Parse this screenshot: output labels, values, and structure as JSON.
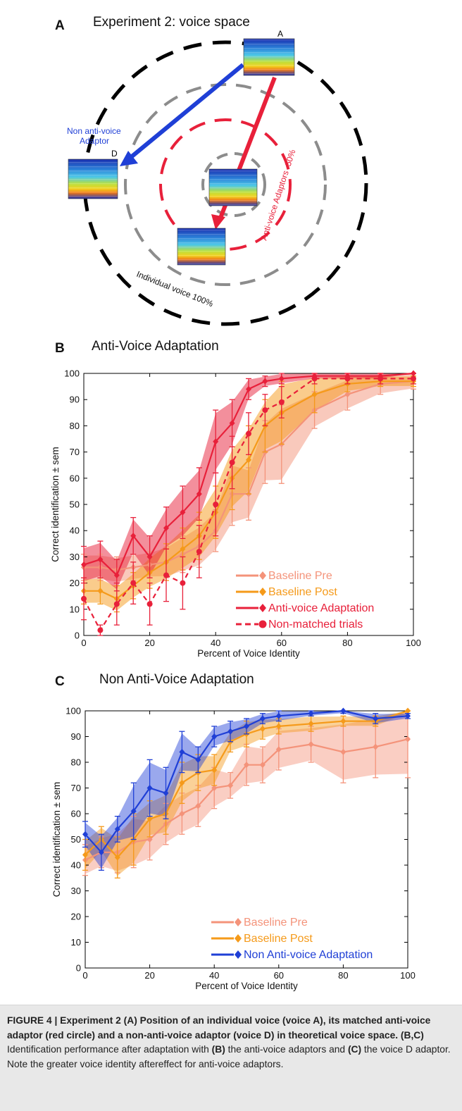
{
  "panel_a": {
    "letter": "A",
    "title": "Experiment 2: voice space",
    "label_a": "A",
    "label_d": "D",
    "label_non_anti_1": "Non anti-voice",
    "label_non_anti_2": "Adaptor",
    "label_anti": "Anti-voice Adaptors -50%",
    "label_individual": "Individual voice 100%",
    "colors": {
      "blue": "#1f3fd6",
      "red": "#e8203a",
      "gray": "#8c8c8c",
      "black": "#000000"
    }
  },
  "panel_b": {
    "letter": "B",
    "title": "Anti-Voice Adaptation",
    "legend": [
      "Baseline Pre",
      "Baseline Post",
      "Anti-voice Adaptation",
      "Non-matched trials"
    ]
  },
  "panel_c": {
    "letter": "C",
    "title": "Non Anti-Voice Adaptation",
    "legend": [
      "Baseline Pre",
      "Baseline Post",
      "Non Anti-voice Adaptation"
    ]
  },
  "chart_data": [
    {
      "type": "line",
      "title": "Anti-Voice Adaptation",
      "xlabel": "Percent of Voice Identity",
      "ylabel": "Correct identification ± sem",
      "xlim": [
        0,
        100
      ],
      "ylim": [
        0,
        100
      ],
      "xticks": [
        0,
        20,
        40,
        60,
        80,
        100
      ],
      "yticks": [
        0,
        10,
        20,
        30,
        40,
        50,
        60,
        70,
        80,
        90,
        100
      ],
      "series": [
        {
          "name": "Baseline Pre",
          "color": "#f4937a",
          "x": [
            0,
            5,
            10,
            15,
            20,
            25,
            30,
            35,
            40,
            45,
            50,
            55,
            60,
            70,
            80,
            90,
            100
          ],
          "y": [
            26,
            26,
            25,
            26,
            27,
            28,
            31,
            34,
            40,
            54,
            54,
            70,
            73,
            86,
            92,
            96,
            97
          ],
          "err": [
            5,
            5,
            5,
            5,
            5,
            6,
            7,
            8,
            8,
            12,
            10,
            12,
            15,
            7,
            6,
            4,
            3
          ]
        },
        {
          "name": "Baseline Post",
          "color": "#f59a1a",
          "x": [
            0,
            5,
            10,
            15,
            20,
            25,
            30,
            35,
            40,
            45,
            50,
            55,
            60,
            70,
            80,
            90,
            100
          ],
          "y": [
            17,
            17,
            14,
            19,
            24,
            28,
            33,
            38,
            47,
            60,
            67,
            80,
            85,
            92,
            96,
            97,
            97
          ],
          "err": [
            5,
            5,
            5,
            5,
            6,
            7,
            8,
            9,
            10,
            12,
            13,
            10,
            12,
            7,
            3,
            2,
            2
          ]
        },
        {
          "name": "Anti-voice Adaptation",
          "color": "#e8203a",
          "x": [
            0,
            5,
            10,
            15,
            20,
            25,
            30,
            35,
            40,
            45,
            50,
            55,
            60,
            70,
            80,
            90,
            100
          ],
          "y": [
            27,
            29,
            23,
            38,
            30,
            41,
            47,
            54,
            74,
            81,
            94,
            97,
            98,
            99,
            99,
            99,
            100
          ],
          "err": [
            7,
            7,
            6,
            7,
            8,
            8,
            10,
            10,
            12,
            9,
            4,
            2,
            2,
            1,
            1,
            1,
            0
          ]
        },
        {
          "name": "Non-matched trials",
          "color": "#e8203a",
          "dashed": true,
          "x": [
            0,
            5,
            10,
            15,
            20,
            25,
            30,
            35,
            40,
            45,
            50,
            55,
            60,
            70,
            80,
            90,
            100
          ],
          "y": [
            14,
            2,
            12,
            20,
            12,
            23,
            20,
            32,
            50,
            66,
            77,
            86,
            89,
            98,
            98,
            98,
            98
          ],
          "err": [
            8,
            2,
            8,
            8,
            8,
            10,
            10,
            10,
            12,
            10,
            8,
            6,
            6,
            2,
            2,
            2,
            2
          ]
        }
      ]
    },
    {
      "type": "line",
      "title": "Non Anti-Voice Adaptation",
      "xlabel": "Percent of Voice Identity",
      "ylabel": "Correct identification ± sem",
      "xlim": [
        0,
        100
      ],
      "ylim": [
        0,
        100
      ],
      "xticks": [
        0,
        20,
        40,
        60,
        80,
        100
      ],
      "yticks": [
        0,
        10,
        20,
        30,
        40,
        50,
        60,
        70,
        80,
        90,
        100
      ],
      "series": [
        {
          "name": "Baseline Pre",
          "color": "#f4937a",
          "x": [
            0,
            5,
            10,
            15,
            20,
            25,
            30,
            35,
            40,
            45,
            50,
            55,
            60,
            70,
            80,
            90,
            100
          ],
          "y": [
            42,
            45,
            45,
            49,
            50,
            56,
            60,
            63,
            70,
            71,
            79,
            79,
            85,
            87,
            84,
            86,
            89
          ],
          "err": [
            6,
            6,
            8,
            10,
            8,
            8,
            8,
            8,
            8,
            5,
            8,
            7,
            8,
            7,
            12,
            12,
            15
          ]
        },
        {
          "name": "Baseline Post",
          "color": "#f59a1a",
          "x": [
            0,
            5,
            10,
            15,
            20,
            25,
            30,
            35,
            40,
            45,
            50,
            55,
            60,
            70,
            80,
            90,
            100
          ],
          "y": [
            44,
            50,
            43,
            50,
            58,
            60,
            72,
            76,
            77,
            88,
            91,
            93,
            94,
            95,
            96,
            96,
            100
          ],
          "err": [
            6,
            5,
            8,
            10,
            7,
            8,
            8,
            7,
            6,
            4,
            5,
            4,
            3,
            3,
            2,
            2,
            1
          ]
        },
        {
          "name": "Non Anti-voice Adaptation",
          "color": "#1f3fd6",
          "x": [
            0,
            5,
            10,
            15,
            20,
            25,
            30,
            35,
            40,
            45,
            50,
            55,
            60,
            70,
            80,
            90,
            100
          ],
          "y": [
            52,
            45,
            54,
            61,
            70,
            68,
            84,
            81,
            90,
            92,
            94,
            97,
            98,
            99,
            100,
            97,
            98
          ],
          "err": [
            5,
            7,
            5,
            11,
            11,
            10,
            8,
            5,
            4,
            4,
            3,
            2,
            2,
            1,
            1,
            2,
            1
          ]
        }
      ]
    }
  ],
  "caption": {
    "bold_1": "FIGURE 4 | Experiment 2 (A) Position of an individual voice (voice A), its matched anti-voice adaptor (red circle) and a non-anti-voice adaptor (voice D) in theoretical voice space. (B,C)",
    "text_1": " Identification performance after adaptation with ",
    "bold_2": "(B)",
    "text_2": " the anti-voice adaptors and ",
    "bold_3": "(C)",
    "text_3": " the voice D adaptor. Note the greater voice identity aftereffect for anti-voice adaptors."
  }
}
